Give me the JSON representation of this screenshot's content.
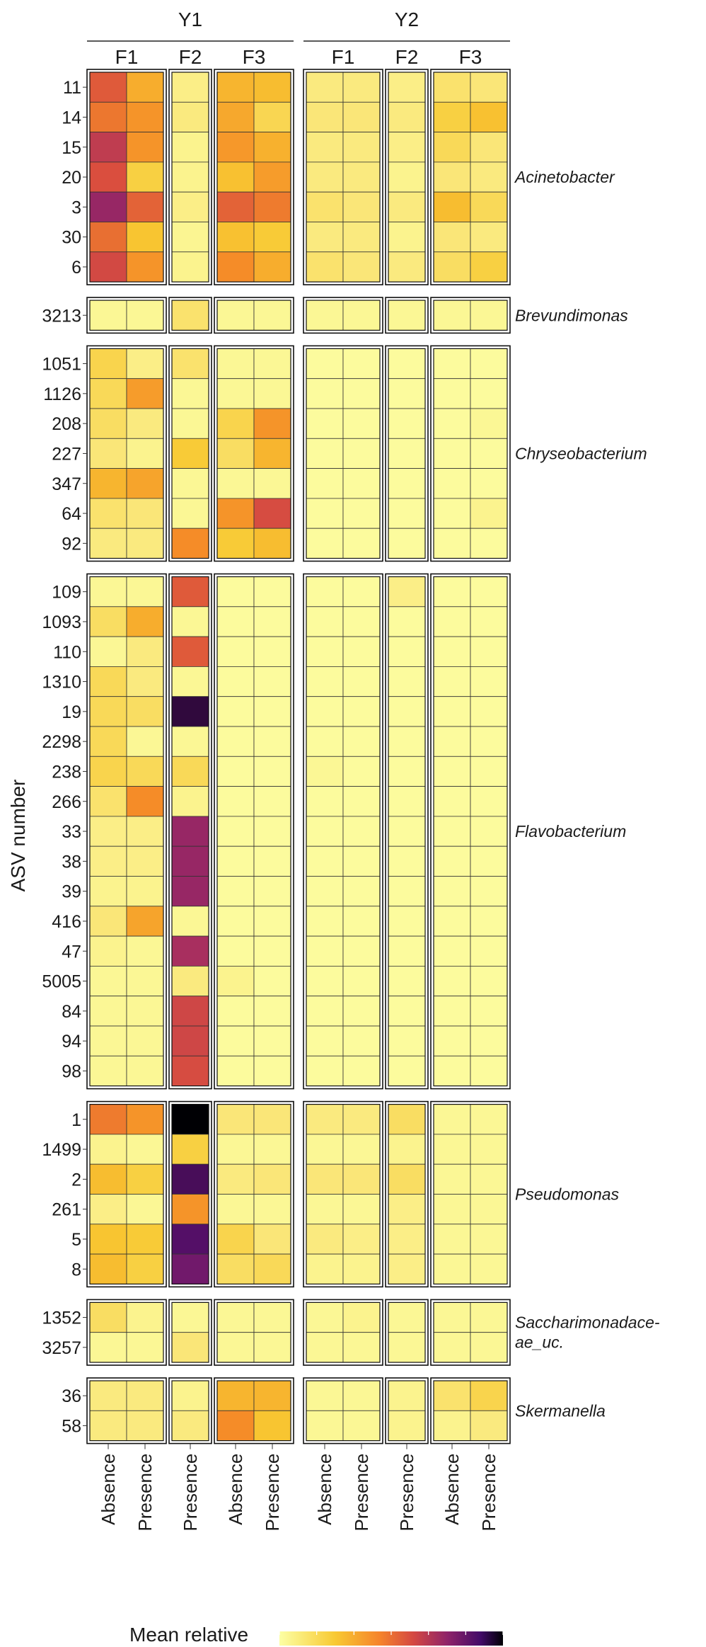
{
  "chart_data": {
    "type": "heatmap",
    "ylabel": "ASV number",
    "legend_title": "Mean relative",
    "colormap": "inferno (yellow = low, black = high)",
    "legend_placement": "bottom",
    "value_scale": "0 = pale yellow, 1 = black (relative)",
    "years": [
      "Y1",
      "Y2"
    ],
    "column_groups": [
      {
        "year": "Y1",
        "group": "F1",
        "columns": [
          "Absence",
          "Presence"
        ]
      },
      {
        "year": "Y1",
        "group": "F2",
        "columns": [
          "Presence"
        ]
      },
      {
        "year": "Y1",
        "group": "F3",
        "columns": [
          "Absence",
          "Presence"
        ]
      },
      {
        "year": "Y2",
        "group": "F1",
        "columns": [
          "Absence",
          "Presence"
        ]
      },
      {
        "year": "Y2",
        "group": "F2",
        "columns": [
          "Presence"
        ]
      },
      {
        "year": "Y2",
        "group": "F3",
        "columns": [
          "Absence",
          "Presence"
        ]
      }
    ],
    "row_blocks": [
      {
        "genus": "Acinetobacter",
        "rows": [
          {
            "asv": "11",
            "values": [
              0.52,
              0.32,
              0.08,
              0.3,
              0.28,
              0.1,
              0.1,
              0.08,
              0.14,
              0.12
            ]
          },
          {
            "asv": "14",
            "values": [
              0.45,
              0.38,
              0.1,
              0.33,
              0.19,
              0.12,
              0.12,
              0.1,
              0.22,
              0.27
            ]
          },
          {
            "asv": "15",
            "values": [
              0.62,
              0.38,
              0.06,
              0.37,
              0.31,
              0.1,
              0.1,
              0.08,
              0.18,
              0.12
            ]
          },
          {
            "asv": "20",
            "values": [
              0.55,
              0.22,
              0.06,
              0.27,
              0.36,
              0.1,
              0.1,
              0.06,
              0.12,
              0.1
            ]
          },
          {
            "asv": "3",
            "values": [
              0.72,
              0.5,
              0.08,
              0.5,
              0.44,
              0.14,
              0.12,
              0.1,
              0.28,
              0.18
            ]
          },
          {
            "asv": "30",
            "values": [
              0.47,
              0.26,
              0.05,
              0.27,
              0.24,
              0.1,
              0.1,
              0.06,
              0.12,
              0.1
            ]
          },
          {
            "asv": "6",
            "values": [
              0.57,
              0.38,
              0.06,
              0.4,
              0.32,
              0.14,
              0.12,
              0.1,
              0.16,
              0.22
            ]
          }
        ]
      },
      {
        "genus": "Brevundimonas",
        "rows": [
          {
            "asv": "3213",
            "values": [
              0.04,
              0.04,
              0.14,
              0.04,
              0.04,
              0.04,
              0.04,
              0.04,
              0.04,
              0.04
            ]
          }
        ]
      },
      {
        "genus": "Chryseobacterium",
        "rows": [
          {
            "asv": "1051",
            "values": [
              0.2,
              0.08,
              0.14,
              0.04,
              0.04,
              0.02,
              0.02,
              0.02,
              0.02,
              0.02
            ]
          },
          {
            "asv": "1126",
            "values": [
              0.18,
              0.36,
              0.04,
              0.04,
              0.04,
              0.02,
              0.02,
              0.02,
              0.02,
              0.02
            ]
          },
          {
            "asv": "208",
            "values": [
              0.16,
              0.1,
              0.04,
              0.2,
              0.38,
              0.02,
              0.02,
              0.02,
              0.02,
              0.04
            ]
          },
          {
            "asv": "227",
            "values": [
              0.12,
              0.06,
              0.24,
              0.16,
              0.3,
              0.02,
              0.02,
              0.02,
              0.02,
              0.02
            ]
          },
          {
            "asv": "347",
            "values": [
              0.3,
              0.34,
              0.04,
              0.04,
              0.04,
              0.02,
              0.02,
              0.02,
              0.02,
              0.02
            ]
          },
          {
            "asv": "64",
            "values": [
              0.14,
              0.12,
              0.04,
              0.38,
              0.56,
              0.02,
              0.02,
              0.02,
              0.02,
              0.06
            ]
          },
          {
            "asv": "92",
            "values": [
              0.1,
              0.1,
              0.4,
              0.24,
              0.28,
              0.02,
              0.02,
              0.02,
              0.02,
              0.02
            ]
          }
        ]
      },
      {
        "genus": "Flavobacterium",
        "rows": [
          {
            "asv": "109",
            "values": [
              0.04,
              0.04,
              0.52,
              0.02,
              0.02,
              0.02,
              0.02,
              0.08,
              0.02,
              0.02
            ]
          },
          {
            "asv": "1093",
            "values": [
              0.16,
              0.32,
              0.04,
              0.02,
              0.02,
              0.02,
              0.02,
              0.02,
              0.02,
              0.02
            ]
          },
          {
            "asv": "110",
            "values": [
              0.04,
              0.1,
              0.52,
              0.02,
              0.02,
              0.02,
              0.02,
              0.02,
              0.02,
              0.02
            ]
          },
          {
            "asv": "1310",
            "values": [
              0.18,
              0.1,
              0.04,
              0.02,
              0.02,
              0.02,
              0.02,
              0.02,
              0.02,
              0.02
            ]
          },
          {
            "asv": "19",
            "values": [
              0.18,
              0.16,
              0.92,
              0.02,
              0.02,
              0.02,
              0.02,
              0.02,
              0.02,
              0.02
            ]
          },
          {
            "asv": "2298",
            "values": [
              0.18,
              0.04,
              0.04,
              0.02,
              0.02,
              0.02,
              0.02,
              0.02,
              0.02,
              0.02
            ]
          },
          {
            "asv": "238",
            "values": [
              0.2,
              0.18,
              0.18,
              0.02,
              0.02,
              0.04,
              0.02,
              0.02,
              0.02,
              0.02
            ]
          },
          {
            "asv": "266",
            "values": [
              0.14,
              0.4,
              0.06,
              0.02,
              0.02,
              0.02,
              0.02,
              0.02,
              0.02,
              0.02
            ]
          },
          {
            "asv": "33",
            "values": [
              0.08,
              0.08,
              0.72,
              0.02,
              0.02,
              0.02,
              0.02,
              0.02,
              0.02,
              0.02
            ]
          },
          {
            "asv": "38",
            "values": [
              0.08,
              0.08,
              0.72,
              0.02,
              0.02,
              0.02,
              0.02,
              0.02,
              0.02,
              0.02
            ]
          },
          {
            "asv": "39",
            "values": [
              0.06,
              0.06,
              0.72,
              0.02,
              0.02,
              0.02,
              0.02,
              0.02,
              0.02,
              0.02
            ]
          },
          {
            "asv": "416",
            "values": [
              0.12,
              0.34,
              0.04,
              0.02,
              0.02,
              0.02,
              0.02,
              0.02,
              0.02,
              0.02
            ]
          },
          {
            "asv": "47",
            "values": [
              0.06,
              0.04,
              0.68,
              0.02,
              0.02,
              0.02,
              0.02,
              0.02,
              0.02,
              0.02
            ]
          },
          {
            "asv": "5005",
            "values": [
              0.04,
              0.04,
              0.1,
              0.06,
              0.02,
              0.02,
              0.02,
              0.02,
              0.02,
              0.02
            ]
          },
          {
            "asv": "84",
            "values": [
              0.04,
              0.04,
              0.58,
              0.02,
              0.02,
              0.02,
              0.02,
              0.02,
              0.02,
              0.02
            ]
          },
          {
            "asv": "94",
            "values": [
              0.04,
              0.04,
              0.58,
              0.02,
              0.02,
              0.02,
              0.02,
              0.02,
              0.02,
              0.02
            ]
          },
          {
            "asv": "98",
            "values": [
              0.04,
              0.04,
              0.56,
              0.02,
              0.02,
              0.02,
              0.02,
              0.02,
              0.02,
              0.02
            ]
          }
        ]
      },
      {
        "genus": "Pseudomonas",
        "rows": [
          {
            "asv": "1",
            "values": [
              0.44,
              0.38,
              1.0,
              0.12,
              0.12,
              0.1,
              0.1,
              0.16,
              0.04,
              0.04
            ]
          },
          {
            "asv": "1499",
            "values": [
              0.06,
              0.04,
              0.22,
              0.04,
              0.04,
              0.04,
              0.04,
              0.06,
              0.04,
              0.04
            ]
          },
          {
            "asv": "2",
            "values": [
              0.28,
              0.22,
              0.88,
              0.1,
              0.12,
              0.12,
              0.12,
              0.16,
              0.04,
              0.04
            ]
          },
          {
            "asv": "261",
            "values": [
              0.08,
              0.04,
              0.38,
              0.04,
              0.04,
              0.04,
              0.04,
              0.08,
              0.04,
              0.04
            ]
          },
          {
            "asv": "5",
            "values": [
              0.26,
              0.24,
              0.86,
              0.2,
              0.12,
              0.1,
              0.08,
              0.08,
              0.04,
              0.04
            ]
          },
          {
            "asv": "8",
            "values": [
              0.28,
              0.22,
              0.8,
              0.16,
              0.18,
              0.06,
              0.06,
              0.08,
              0.04,
              0.04
            ]
          }
        ]
      },
      {
        "genus": "Saccharimonadaceae_uc.",
        "rows": [
          {
            "asv": "1352",
            "values": [
              0.16,
              0.06,
              0.04,
              0.04,
              0.04,
              0.04,
              0.06,
              0.04,
              0.04,
              0.04
            ]
          },
          {
            "asv": "3257",
            "values": [
              0.04,
              0.04,
              0.12,
              0.04,
              0.04,
              0.04,
              0.04,
              0.04,
              0.04,
              0.04
            ]
          }
        ]
      },
      {
        "genus": "Skermanella",
        "rows": [
          {
            "asv": "36",
            "values": [
              0.1,
              0.1,
              0.06,
              0.3,
              0.3,
              0.04,
              0.04,
              0.06,
              0.14,
              0.2
            ]
          },
          {
            "asv": "58",
            "values": [
              0.1,
              0.1,
              0.1,
              0.4,
              0.26,
              0.04,
              0.04,
              0.06,
              0.06,
              0.1
            ]
          }
        ]
      }
    ],
    "genus_display": {
      "Saccharimonadaceae_uc.": [
        "Saccharimonadace-",
        "ae_uc."
      ]
    }
  }
}
